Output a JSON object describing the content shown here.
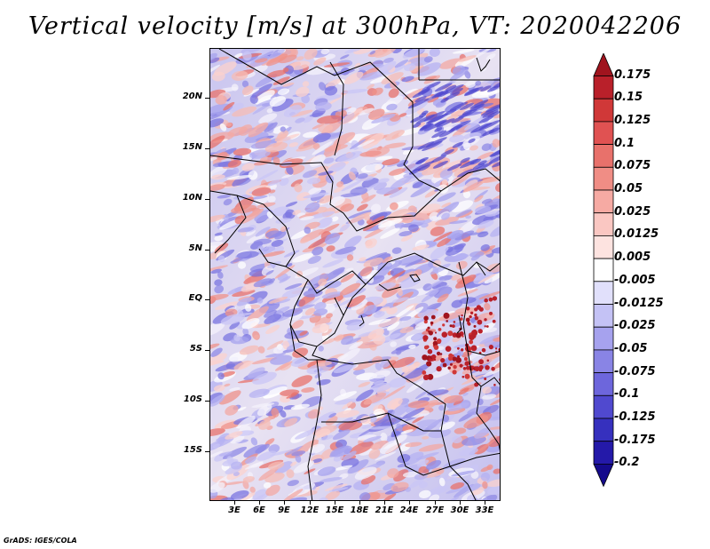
{
  "title": "Vertical velocity [m/s] at 300hPa, VT: 2020042206",
  "footer": "GrADS: IGES/COLA",
  "lat_labels": [
    "20N",
    "15N",
    "10N",
    "5N",
    "EQ",
    "5S",
    "10S",
    "15S"
  ],
  "lon_labels": [
    "3E",
    "6E",
    "9E",
    "12E",
    "15E",
    "18E",
    "21E",
    "24E",
    "27E",
    "30E",
    "33E"
  ],
  "colorbar": {
    "levels": [
      "0.175",
      "0.15",
      "0.125",
      "0.1",
      "0.075",
      "0.05",
      "0.025",
      "0.0125",
      "0.005",
      "-0.005",
      "-0.0125",
      "-0.025",
      "-0.05",
      "-0.075",
      "-0.1",
      "-0.125",
      "-0.175",
      "-0.2"
    ],
    "colors": [
      "#a0141e",
      "#b9202a",
      "#d03838",
      "#e05252",
      "#e8716b",
      "#f08d85",
      "#f6aaa3",
      "#fac7c2",
      "#fde3e0",
      "#ffffff",
      "#e1e0fb",
      "#c4c2f5",
      "#a6a2ee",
      "#8984e5",
      "#6d66dc",
      "#5049cf",
      "#3630be",
      "#2419a9",
      "#150a8c"
    ]
  }
}
